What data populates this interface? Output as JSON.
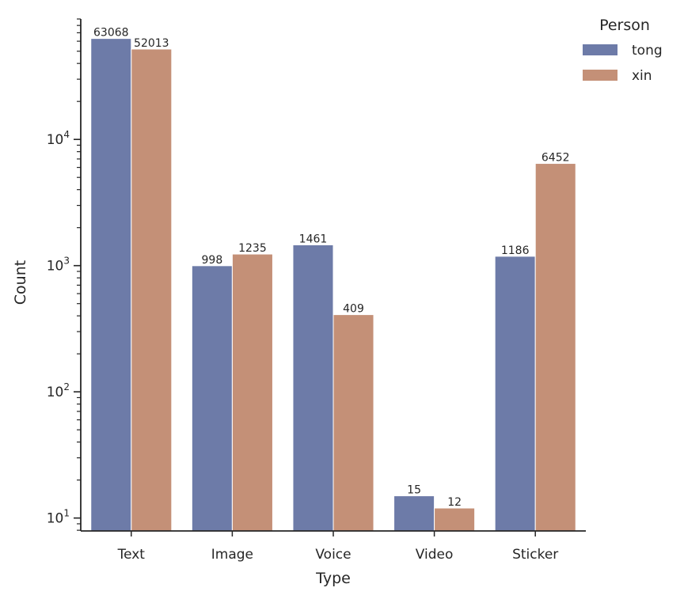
{
  "chart_data": {
    "type": "bar",
    "categories": [
      "Text",
      "Image",
      "Voice",
      "Video",
      "Sticker"
    ],
    "series": [
      {
        "name": "tong",
        "values": [
          63068,
          998,
          1461,
          15,
          1186
        ],
        "labels": [
          "63068",
          "998",
          "1461",
          "15",
          "1186"
        ]
      },
      {
        "name": "xin",
        "values": [
          52013,
          1235,
          409,
          12,
          6452
        ],
        "labels": [
          "52013",
          "1235",
          "409",
          "12",
          "6452"
        ]
      }
    ],
    "xlabel": "Type",
    "ylabel": "Count",
    "yscale": "log",
    "ylim": [
      7.9,
      90000
    ],
    "yticks": [
      {
        "value": 10,
        "base": "10",
        "exp": "1"
      },
      {
        "value": 100,
        "base": "10",
        "exp": "2"
      },
      {
        "value": 1000,
        "base": "10",
        "exp": "3"
      },
      {
        "value": 10000,
        "base": "10",
        "exp": "4"
      }
    ],
    "legend": {
      "title": "Person",
      "placement": "top-right"
    },
    "colors": {
      "tong": "#6d7ba8",
      "xin": "#c49077",
      "axis": "#262626"
    },
    "grid": false
  }
}
